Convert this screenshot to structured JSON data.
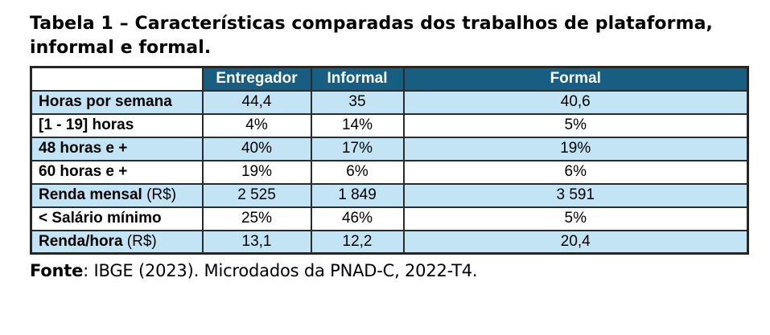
{
  "title": {
    "full": "Tabela 1 – Características comparadas dos trabalhos de plataforma, informal e formal.",
    "lines": [
      "Tabela 1 – Características comparadas dos trabalhos de plataforma,",
      "informal e formal."
    ]
  },
  "table": {
    "columns": [
      "",
      "Entregador",
      "Informal",
      "Formal"
    ],
    "rows": [
      {
        "label": "Horas por semana",
        "suffix": "",
        "values": [
          "44,4",
          "35",
          "40,6"
        ]
      },
      {
        "label": "[1 - 19] horas",
        "suffix": "",
        "values": [
          "4%",
          "14%",
          "5%"
        ]
      },
      {
        "label": "48 horas e +",
        "suffix": "",
        "values": [
          "40%",
          "17%",
          "19%"
        ]
      },
      {
        "label": "60 horas e +",
        "suffix": "",
        "values": [
          "19%",
          "6%",
          "6%"
        ]
      },
      {
        "label": "Renda mensal",
        "suffix": " (R$)",
        "values": [
          "2 525",
          "1 849",
          "3 591"
        ]
      },
      {
        "label": "< Salário mínimo",
        "suffix": "",
        "values": [
          "25%",
          "46%",
          "5%"
        ]
      },
      {
        "label": "Renda/hora",
        "suffix": " (R$)",
        "values": [
          "13,1",
          "12,2",
          "20,4"
        ]
      }
    ]
  },
  "source": {
    "prefix": "Fonte",
    "rest": ": IBGE (2023). Microdados da PNAD-C, 2022-T4.",
    "full": "Fonte: IBGE (2023). Microdados da PNAD-C, 2022-T4."
  },
  "colors": {
    "header_bg": "#175e82",
    "header_text": "#ffffff",
    "row_alt_bg": "#c2e4f4",
    "border": "#2b2b2b"
  },
  "chart_data": {
    "type": "table",
    "title": "Tabela 1 – Características comparadas dos trabalhos de plataforma, informal e formal.",
    "columns": [
      "",
      "Entregador",
      "Informal",
      "Formal"
    ],
    "rows": [
      [
        "Horas por semana",
        "44,4",
        "35",
        "40,6"
      ],
      [
        "[1 - 19] horas",
        "4%",
        "14%",
        "5%"
      ],
      [
        "48 horas e +",
        "40%",
        "17%",
        "19%"
      ],
      [
        "60 horas e +",
        "19%",
        "6%",
        "6%"
      ],
      [
        "Renda mensal (R$)",
        "2 525",
        "1 849",
        "3 591"
      ],
      [
        "< Salário mínimo",
        "25%",
        "46%",
        "5%"
      ],
      [
        "Renda/hora (R$)",
        "13,1",
        "12,2",
        "20,4"
      ]
    ],
    "source": "Fonte: IBGE (2023). Microdados da PNAD-C, 2022-T4.",
    "layout": {
      "striped_rows": "odd rows light blue",
      "header_style": "dark teal, white bold text",
      "grid": "black borders"
    }
  }
}
